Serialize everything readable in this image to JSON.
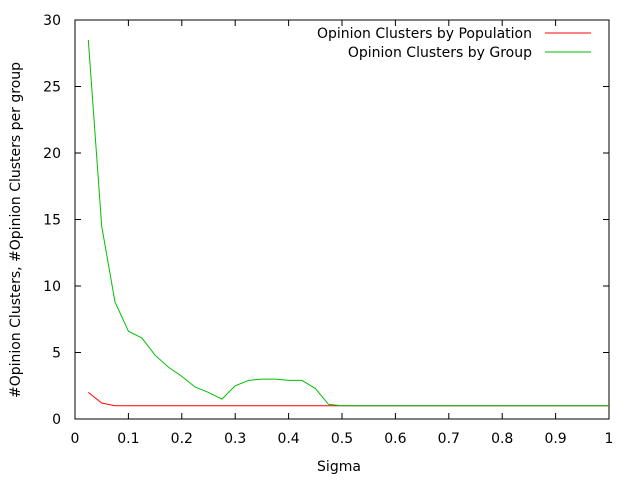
{
  "chart_data": {
    "type": "line",
    "title": "",
    "xlabel": "Sigma",
    "ylabel": "#Opinion Clusters, #Opinion Clusters per group",
    "xlim": [
      0,
      1
    ],
    "ylim": [
      0,
      30
    ],
    "xticks": [
      0,
      0.1,
      0.2,
      0.3,
      0.4,
      0.5,
      0.6,
      0.7,
      0.8,
      0.9,
      1
    ],
    "xtick_labels": [
      "0",
      "0.1",
      "0.2",
      "0.3",
      "0.4",
      "0.5",
      "0.6",
      "0.7",
      "0.8",
      "0.9",
      "1"
    ],
    "yticks": [
      0,
      5,
      10,
      15,
      20,
      25,
      30
    ],
    "ytick_labels": [
      "0",
      "5",
      "10",
      "15",
      "20",
      "25",
      "30"
    ],
    "grid": false,
    "legend_position": "top-right",
    "series": [
      {
        "name": "Opinion Clusters by Population",
        "color": "#ff0000",
        "x": [
          0.025,
          0.05,
          0.075,
          0.1,
          0.125,
          0.15,
          0.175,
          0.2,
          0.225,
          0.25,
          0.275,
          0.3,
          0.325,
          0.35,
          0.375,
          0.4,
          0.425,
          0.45,
          0.475,
          0.5,
          0.525,
          0.55,
          0.575,
          0.6,
          0.625,
          0.65,
          0.675,
          0.7,
          0.725,
          0.75,
          0.775,
          0.8,
          0.825,
          0.85,
          0.875,
          0.9,
          0.925,
          0.95,
          0.975,
          1.0
        ],
        "y": [
          2.0,
          1.2,
          1.0,
          1.0,
          1.0,
          1.0,
          1.0,
          1.0,
          1.0,
          1.0,
          1.0,
          1.0,
          1.0,
          1.0,
          1.0,
          1.0,
          1.0,
          1.0,
          1.0,
          1.0,
          1.0,
          1.0,
          1.0,
          1.0,
          1.0,
          1.0,
          1.0,
          1.0,
          1.0,
          1.0,
          1.0,
          1.0,
          1.0,
          1.0,
          1.0,
          1.0,
          1.0,
          1.0,
          1.0,
          1.0
        ]
      },
      {
        "name": "Opinion Clusters by Group",
        "color": "#00c000",
        "x": [
          0.025,
          0.05,
          0.075,
          0.1,
          0.125,
          0.15,
          0.175,
          0.2,
          0.225,
          0.25,
          0.275,
          0.3,
          0.325,
          0.35,
          0.375,
          0.4,
          0.425,
          0.45,
          0.475,
          0.5,
          0.525,
          0.55,
          0.575,
          0.6,
          0.625,
          0.65,
          0.675,
          0.7,
          0.725,
          0.75,
          0.775,
          0.8,
          0.825,
          0.85,
          0.875,
          0.9,
          0.925,
          0.95,
          0.975,
          1.0
        ],
        "y": [
          28.5,
          14.5,
          8.8,
          6.6,
          6.1,
          4.8,
          3.9,
          3.2,
          2.4,
          2.0,
          1.5,
          2.5,
          2.9,
          3.0,
          3.0,
          2.9,
          2.9,
          2.3,
          1.1,
          1.0,
          1.0,
          1.0,
          1.0,
          1.0,
          1.0,
          1.0,
          1.0,
          1.0,
          1.0,
          1.0,
          1.0,
          1.0,
          1.0,
          1.0,
          1.0,
          1.0,
          1.0,
          1.0,
          1.0,
          1.0
        ]
      }
    ]
  }
}
